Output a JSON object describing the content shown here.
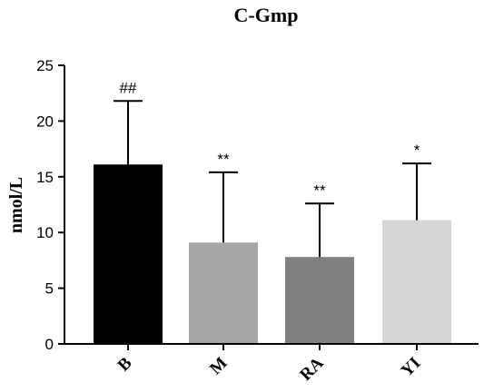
{
  "chart_data": {
    "type": "bar",
    "title": "C-Gmp",
    "ylabel": "nmol/L",
    "xlabel": "",
    "ylim": [
      0,
      25
    ],
    "yticks": [
      0,
      5,
      10,
      15,
      20,
      25
    ],
    "categories": [
      "B",
      "M",
      "RA",
      "YI"
    ],
    "values": [
      16.1,
      9.1,
      7.8,
      11.1
    ],
    "error_upper": [
      21.8,
      15.4,
      12.6,
      16.2
    ],
    "annotations": [
      "##",
      "**",
      "**",
      "*"
    ],
    "colors": [
      "#000000",
      "#a6a6a6",
      "#808080",
      "#d6d6d6"
    ],
    "grid": false,
    "legend": "none"
  }
}
